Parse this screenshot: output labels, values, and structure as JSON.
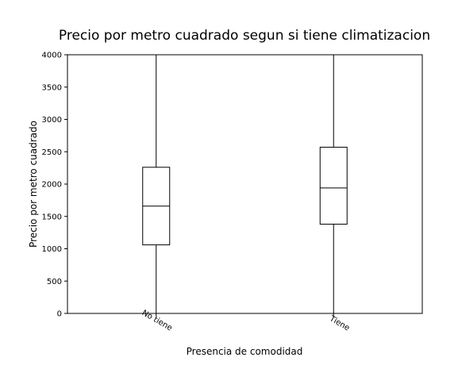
{
  "chart_data": {
    "type": "box",
    "title": "Precio por metro cuadrado segun si tiene climatizacion",
    "xlabel": "Presencia de comodidad",
    "ylabel": "Precio por metro cuadrado",
    "ylim": [
      0,
      4000
    ],
    "yticks": [
      0,
      500,
      1000,
      1500,
      2000,
      2500,
      3000,
      3500,
      4000
    ],
    "grid": false,
    "categories": [
      "No tiene",
      "Tiene"
    ],
    "boxes": [
      {
        "category": "No tiene",
        "whisker_low": 0,
        "q1": 1060,
        "median": 1660,
        "q3": 2260,
        "whisker_high": 4000
      },
      {
        "category": "Tiene",
        "whisker_low": 0,
        "q1": 1380,
        "median": 1940,
        "q3": 2570,
        "whisker_high": 4000
      }
    ],
    "box_color": "#000000",
    "background": "#ffffff"
  }
}
